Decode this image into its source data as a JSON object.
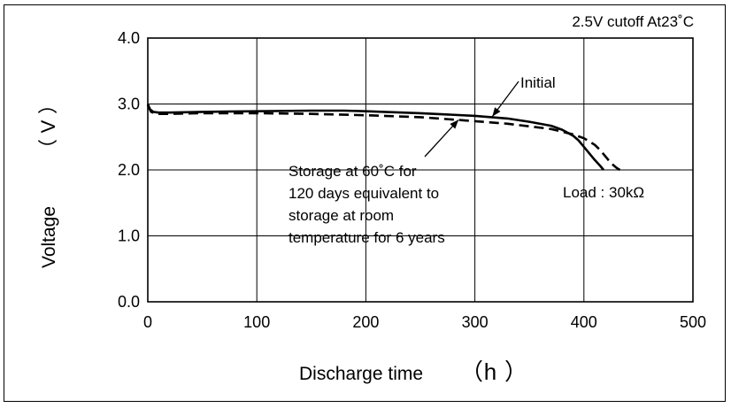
{
  "chart_data": {
    "type": "line",
    "condition": "2.5V cutoff  At23˚C",
    "xlabel": "Discharge time",
    "xlabel_unit": "h",
    "ylabel": "Voltage",
    "ylabel_unit": "V",
    "xlim": [
      0,
      500
    ],
    "ylim": [
      0.0,
      4.0
    ],
    "x_ticks": [
      "0",
      "100",
      "200",
      "300",
      "400",
      "500"
    ],
    "y_ticks": [
      "0.0",
      "1.0",
      "2.0",
      "3.0",
      "4.0"
    ],
    "grid": true,
    "series": [
      {
        "name": "Initial",
        "style": "solid",
        "color": "#000000",
        "x": [
          0,
          2,
          5,
          10,
          20,
          50,
          100,
          150,
          180,
          200,
          250,
          300,
          330,
          350,
          370,
          380,
          390,
          395,
          400,
          405,
          410,
          415,
          418
        ],
        "y": [
          3.0,
          2.92,
          2.88,
          2.87,
          2.87,
          2.88,
          2.89,
          2.9,
          2.9,
          2.89,
          2.86,
          2.82,
          2.78,
          2.73,
          2.67,
          2.61,
          2.52,
          2.45,
          2.35,
          2.25,
          2.15,
          2.06,
          2.0
        ]
      },
      {
        "name": "Storage at 60˚C for 120 days equivalent to storage at room temperature for 6 years",
        "style": "dashed",
        "color": "#000000",
        "x": [
          0,
          3,
          8,
          20,
          50,
          100,
          150,
          200,
          250,
          300,
          330,
          350,
          370,
          380,
          390,
          400,
          410,
          415,
          420,
          425,
          430,
          433
        ],
        "y": [
          2.98,
          2.88,
          2.85,
          2.85,
          2.86,
          2.86,
          2.85,
          2.83,
          2.8,
          2.74,
          2.7,
          2.66,
          2.62,
          2.58,
          2.54,
          2.48,
          2.38,
          2.3,
          2.2,
          2.1,
          2.03,
          2.0
        ]
      }
    ],
    "annotations": {
      "initial_label": "Initial",
      "storage_label_lines": [
        "Storage at 60˚C for",
        "120 days equivalent to",
        "storage at room",
        "temperature for 6 years"
      ],
      "load_label": "Load : 30kΩ"
    }
  }
}
